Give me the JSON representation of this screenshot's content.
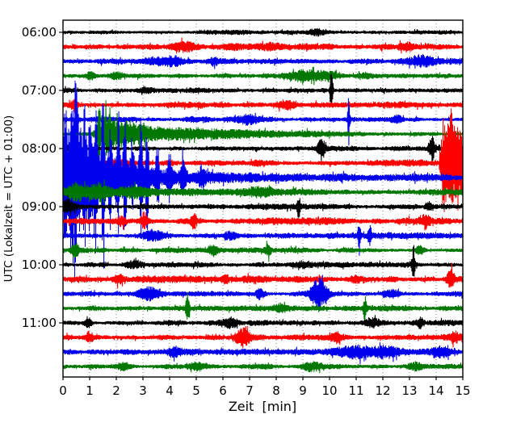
{
  "figure": {
    "background": "#ffffff",
    "title": ""
  },
  "chart_data": {
    "type": "line",
    "subtype": "helicorder-seismogram-drum-plot",
    "title": "",
    "xlabel": "Zeit  [min]",
    "ylabel": "UTC (Lokalzeit = UTC + 01:00)",
    "xlim": [
      0,
      15
    ],
    "xticks": [
      0,
      1,
      2,
      3,
      4,
      5,
      6,
      7,
      8,
      9,
      10,
      11,
      12,
      13,
      14,
      15
    ],
    "minutes_per_line": 15,
    "grid": "vertical-dotted",
    "grid_color": "#8a8a8a",
    "legend": "none",
    "ytick_labels": [
      "06:00",
      "07:00",
      "08:00",
      "09:00",
      "10:00",
      "11:00"
    ],
    "trace_color_cycle": [
      "#000000",
      "#ff0000",
      "#0000ee",
      "#007700"
    ],
    "traces": [
      {
        "start": "06:00",
        "color": "#000000",
        "base": 2.2,
        "seed": 101,
        "events": [
          {
            "t": 9.5,
            "a": 3.0,
            "w": 0.25,
            "k": "burst"
          }
        ]
      },
      {
        "start": "06:15",
        "color": "#ff0000",
        "base": 3.0,
        "seed": 102,
        "events": [
          {
            "t": 4.6,
            "a": 3.5,
            "w": 0.3,
            "k": "burst"
          },
          {
            "t": 7.9,
            "a": 3.0,
            "w": 0.25,
            "k": "burst"
          },
          {
            "t": 12.9,
            "a": 3.0,
            "w": 0.2,
            "k": "burst"
          }
        ]
      },
      {
        "start": "06:30",
        "color": "#0000ee",
        "base": 2.6,
        "seed": 103,
        "events": [
          {
            "t": 3.9,
            "a": 3.5,
            "w": 0.5,
            "k": "burst"
          },
          {
            "t": 5.7,
            "a": 3.0,
            "w": 0.2,
            "k": "burst"
          },
          {
            "t": 13.5,
            "a": 3.5,
            "w": 0.3,
            "k": "burst"
          }
        ]
      },
      {
        "start": "06:45",
        "color": "#007700",
        "base": 2.1,
        "seed": 104,
        "events": [
          {
            "t": 1.05,
            "a": 4.0,
            "w": 0.12,
            "k": "burst"
          },
          {
            "t": 2.0,
            "a": 3.5,
            "w": 0.2,
            "k": "burst"
          },
          {
            "t": 9.0,
            "a": 4.5,
            "w": 0.45,
            "k": "burst"
          },
          {
            "t": 9.9,
            "a": 4.5,
            "w": 0.35,
            "k": "burst"
          },
          {
            "t": 11.3,
            "a": 3.0,
            "w": 0.2,
            "k": "burst"
          }
        ]
      },
      {
        "start": "07:00",
        "color": "#000000",
        "base": 2.2,
        "seed": 105,
        "events": [
          {
            "t": 3.1,
            "a": 3.0,
            "w": 0.2,
            "k": "burst"
          },
          {
            "t": 10.08,
            "a": 18.0,
            "w": 0.04,
            "k": "spike"
          }
        ]
      },
      {
        "start": "07:15",
        "color": "#ff0000",
        "base": 3.0,
        "seed": 106,
        "events": [
          {
            "t": 0.4,
            "a": 4.0,
            "w": 0.1,
            "k": "burst"
          },
          {
            "t": 8.3,
            "a": 3.0,
            "w": 0.25,
            "k": "burst"
          }
        ]
      },
      {
        "start": "07:30",
        "color": "#0000ee",
        "base": 2.6,
        "seed": 107,
        "events": [
          {
            "t": 0.52,
            "a": 30.0,
            "w": 0.03,
            "k": "spike"
          },
          {
            "t": 6.9,
            "a": 3.5,
            "w": 0.2,
            "k": "burst"
          },
          {
            "t": 10.72,
            "a": 23.0,
            "w": 0.03,
            "k": "spike"
          },
          {
            "t": 12.5,
            "a": 4.5,
            "w": 0.15,
            "k": "burst"
          }
        ]
      },
      {
        "start": "07:45",
        "color": "#007700",
        "base": 2.1,
        "seed": 108,
        "events": [
          {
            "t": 1.35,
            "a": 44.0,
            "w": 0.035,
            "k": "spike"
          },
          {
            "t": 1.6,
            "a": 11.0,
            "w": 0.25,
            "k": "burst"
          },
          {
            "t": 1.45,
            "a": 11.0,
            "w": 3.5,
            "k": "decay"
          },
          {
            "t": 2.5,
            "a": 5.0,
            "w": 0.3,
            "k": "burst"
          }
        ]
      },
      {
        "start": "08:00",
        "color": "#000000",
        "base": 2.2,
        "seed": 109,
        "events": [
          {
            "t": 0.3,
            "a": 5.0,
            "w": 0.15,
            "k": "burst"
          },
          {
            "t": 9.7,
            "a": 12.0,
            "w": 0.1,
            "k": "burst"
          },
          {
            "t": 13.85,
            "a": 12.0,
            "w": 0.08,
            "k": "burst"
          }
        ]
      },
      {
        "start": "08:15",
        "color": "#ff0000",
        "base": 3.0,
        "seed": 110,
        "events": [
          {
            "t": 2.1,
            "a": 3.0,
            "w": 0.2,
            "k": "burst"
          },
          {
            "t": 14.1,
            "a": 38.0,
            "w": 0.15,
            "k": "step"
          },
          {
            "t": 14.35,
            "a": 14.0,
            "w": 0.06,
            "k": "spike"
          },
          {
            "t": 14.6,
            "a": 16.0,
            "w": 0.07,
            "k": "spike"
          },
          {
            "t": 14.85,
            "a": 13.0,
            "w": 0.06,
            "k": "spike"
          }
        ]
      },
      {
        "start": "08:30",
        "color": "#0000ee",
        "base": 2.8,
        "seed": 111,
        "events": [
          {
            "t": 0.0,
            "a": 46.0,
            "w": 1.5,
            "k": "decay"
          },
          {
            "t": 0.0,
            "a": 5.0,
            "w": 6.0,
            "k": "decay"
          },
          {
            "t": 0.1,
            "a": 26.0,
            "w": 0.05,
            "k": "spike"
          },
          {
            "t": 0.32,
            "a": 52.0,
            "w": 0.05,
            "k": "spike"
          },
          {
            "t": 0.46,
            "a": 82.0,
            "w": 0.04,
            "k": "spike"
          },
          {
            "t": 0.62,
            "a": 38.0,
            "w": 0.05,
            "k": "spike"
          },
          {
            "t": 0.82,
            "a": 58.0,
            "w": 0.05,
            "k": "spike"
          },
          {
            "t": 1.02,
            "a": 44.0,
            "w": 0.05,
            "k": "spike"
          },
          {
            "t": 1.22,
            "a": 62.0,
            "w": 0.05,
            "k": "spike"
          },
          {
            "t": 1.5,
            "a": 72.0,
            "w": 0.04,
            "k": "spike"
          },
          {
            "t": 1.78,
            "a": 38.0,
            "w": 0.05,
            "k": "spike"
          },
          {
            "t": 2.06,
            "a": 52.0,
            "w": 0.05,
            "k": "spike"
          },
          {
            "t": 2.32,
            "a": 78.0,
            "w": 0.04,
            "k": "spike"
          },
          {
            "t": 2.6,
            "a": 33.0,
            "w": 0.05,
            "k": "spike"
          },
          {
            "t": 2.92,
            "a": 44.0,
            "w": 0.05,
            "k": "spike"
          },
          {
            "t": 3.16,
            "a": 52.0,
            "w": 0.04,
            "k": "spike"
          },
          {
            "t": 3.55,
            "a": 28.0,
            "w": 0.05,
            "k": "spike"
          },
          {
            "t": 4.0,
            "a": 20.0,
            "w": 0.06,
            "k": "spike"
          },
          {
            "t": 4.5,
            "a": 13.0,
            "w": 0.07,
            "k": "spike"
          },
          {
            "t": 5.2,
            "a": 9.0,
            "w": 0.08,
            "k": "spike"
          }
        ]
      },
      {
        "start": "08:45",
        "color": "#007700",
        "base": 2.3,
        "seed": 112,
        "events": [
          {
            "t": 0.0,
            "a": 4.0,
            "w": 6.0,
            "k": "decay"
          },
          {
            "t": 0.5,
            "a": 6.0,
            "w": 0.15,
            "k": "burst"
          },
          {
            "t": 1.3,
            "a": 5.0,
            "w": 0.2,
            "k": "burst"
          },
          {
            "t": 2.7,
            "a": 4.0,
            "w": 0.3,
            "k": "burst"
          },
          {
            "t": 7.5,
            "a": 3.0,
            "w": 0.3,
            "k": "burst"
          }
        ]
      },
      {
        "start": "09:00",
        "color": "#000000",
        "base": 2.4,
        "seed": 113,
        "events": [
          {
            "t": 0.2,
            "a": 6.0,
            "w": 0.2,
            "k": "burst"
          },
          {
            "t": 8.85,
            "a": 10.0,
            "w": 0.045,
            "k": "spike"
          },
          {
            "t": 13.7,
            "a": 4.0,
            "w": 0.1,
            "k": "burst"
          }
        ]
      },
      {
        "start": "09:15",
        "color": "#ff0000",
        "base": 3.0,
        "seed": 114,
        "events": [
          {
            "t": 2.2,
            "a": 4.5,
            "w": 0.1,
            "k": "burst"
          },
          {
            "t": 3.05,
            "a": 8.0,
            "w": 0.08,
            "k": "burst"
          },
          {
            "t": 4.9,
            "a": 9.0,
            "w": 0.07,
            "k": "burst"
          },
          {
            "t": 13.6,
            "a": 6.0,
            "w": 0.12,
            "k": "burst"
          }
        ]
      },
      {
        "start": "09:30",
        "color": "#0000ee",
        "base": 2.6,
        "seed": 115,
        "events": [
          {
            "t": 3.4,
            "a": 4.5,
            "w": 0.25,
            "k": "burst"
          },
          {
            "t": 6.3,
            "a": 3.5,
            "w": 0.2,
            "k": "burst"
          },
          {
            "t": 11.12,
            "a": 13.0,
            "w": 0.04,
            "k": "spike"
          },
          {
            "t": 11.5,
            "a": 9.0,
            "w": 0.05,
            "k": "spike"
          }
        ]
      },
      {
        "start": "09:45",
        "color": "#007700",
        "base": 2.2,
        "seed": 116,
        "events": [
          {
            "t": 0.45,
            "a": 6.5,
            "w": 0.1,
            "k": "burst"
          },
          {
            "t": 5.65,
            "a": 5.0,
            "w": 0.1,
            "k": "burst"
          },
          {
            "t": 7.7,
            "a": 5.0,
            "w": 0.07,
            "k": "burst"
          },
          {
            "t": 13.4,
            "a": 4.0,
            "w": 0.12,
            "k": "burst"
          }
        ]
      },
      {
        "start": "10:00",
        "color": "#000000",
        "base": 2.3,
        "seed": 117,
        "events": [
          {
            "t": 2.6,
            "a": 3.5,
            "w": 0.2,
            "k": "burst"
          },
          {
            "t": 9.0,
            "a": 3.0,
            "w": 0.2,
            "k": "burst"
          },
          {
            "t": 13.15,
            "a": 20.0,
            "w": 0.04,
            "k": "spike"
          }
        ]
      },
      {
        "start": "10:15",
        "color": "#ff0000",
        "base": 3.0,
        "seed": 118,
        "events": [
          {
            "t": 2.1,
            "a": 4.5,
            "w": 0.15,
            "k": "burst"
          },
          {
            "t": 6.1,
            "a": 4.0,
            "w": 0.1,
            "k": "burst"
          },
          {
            "t": 11.0,
            "a": 3.5,
            "w": 0.2,
            "k": "burst"
          },
          {
            "t": 14.55,
            "a": 9.0,
            "w": 0.1,
            "k": "burst"
          }
        ]
      },
      {
        "start": "10:30",
        "color": "#0000ee",
        "base": 2.6,
        "seed": 119,
        "events": [
          {
            "t": 3.25,
            "a": 7.0,
            "w": 0.3,
            "k": "burst"
          },
          {
            "t": 7.4,
            "a": 5.0,
            "w": 0.1,
            "k": "burst"
          },
          {
            "t": 9.6,
            "a": 15.0,
            "w": 0.22,
            "k": "burst"
          },
          {
            "t": 12.3,
            "a": 4.0,
            "w": 0.2,
            "k": "burst"
          }
        ]
      },
      {
        "start": "10:45",
        "color": "#007700",
        "base": 2.2,
        "seed": 120,
        "events": [
          {
            "t": 4.67,
            "a": 15.0,
            "w": 0.045,
            "k": "spike"
          },
          {
            "t": 8.2,
            "a": 4.0,
            "w": 0.15,
            "k": "burst"
          },
          {
            "t": 11.33,
            "a": 12.0,
            "w": 0.04,
            "k": "spike"
          }
        ]
      },
      {
        "start": "11:00",
        "color": "#000000",
        "base": 2.4,
        "seed": 121,
        "events": [
          {
            "t": 0.95,
            "a": 6.5,
            "w": 0.09,
            "k": "burst"
          },
          {
            "t": 6.3,
            "a": 4.0,
            "w": 0.15,
            "k": "burst"
          },
          {
            "t": 11.6,
            "a": 4.0,
            "w": 0.2,
            "k": "burst"
          },
          {
            "t": 13.4,
            "a": 4.5,
            "w": 0.1,
            "k": "burst"
          }
        ]
      },
      {
        "start": "11:15",
        "color": "#ff0000",
        "base": 3.0,
        "seed": 122,
        "events": [
          {
            "t": 1.0,
            "a": 5.0,
            "w": 0.1,
            "k": "burst"
          },
          {
            "t": 6.75,
            "a": 9.0,
            "w": 0.18,
            "k": "burst"
          },
          {
            "t": 10.3,
            "a": 4.0,
            "w": 0.15,
            "k": "burst"
          },
          {
            "t": 14.7,
            "a": 5.0,
            "w": 0.1,
            "k": "burst"
          }
        ]
      },
      {
        "start": "11:30",
        "color": "#0000ee",
        "base": 2.6,
        "seed": 123,
        "events": [
          {
            "t": 4.2,
            "a": 4.0,
            "w": 0.2,
            "k": "burst"
          },
          {
            "t": 10.9,
            "a": 5.5,
            "w": 0.45,
            "k": "burst"
          },
          {
            "t": 12.1,
            "a": 5.5,
            "w": 0.4,
            "k": "burst"
          },
          {
            "t": 14.2,
            "a": 4.0,
            "w": 0.2,
            "k": "burst"
          }
        ]
      },
      {
        "start": "11:45",
        "color": "#007700",
        "base": 2.2,
        "seed": 124,
        "events": [
          {
            "t": 2.3,
            "a": 4.0,
            "w": 0.2,
            "k": "burst"
          },
          {
            "t": 5.0,
            "a": 3.5,
            "w": 0.2,
            "k": "burst"
          },
          {
            "t": 9.3,
            "a": 3.5,
            "w": 0.3,
            "k": "burst"
          },
          {
            "t": 13.2,
            "a": 3.5,
            "w": 0.2,
            "k": "burst"
          }
        ]
      }
    ]
  }
}
